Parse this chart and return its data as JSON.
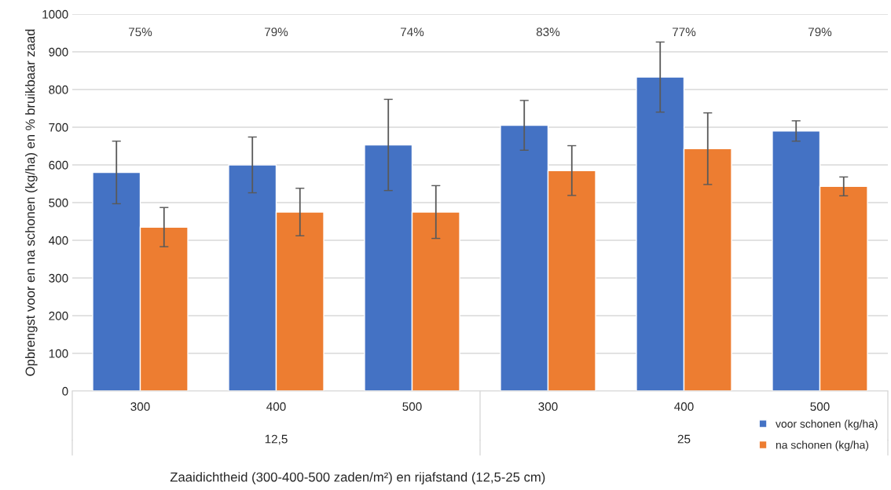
{
  "chart_data": {
    "type": "bar",
    "xlabel": "Zaaidichtheid (300-400-500 zaden/m²) en rijafstand (12,5-25 cm)",
    "ylabel": "Opbrengst voor en na schonen (kg/ha) en % bruikbaar zaad",
    "categories": [
      "300",
      "400",
      "500",
      "300",
      "400",
      "500"
    ],
    "series": [
      {
        "name": "voor schonen (kg/ha)",
        "color": "#4472c4",
        "values": [
          580,
          600,
          653,
          705,
          833,
          690
        ],
        "errors": [
          83,
          74,
          121,
          66,
          93,
          27
        ]
      },
      {
        "name": "na schonen (kg/ha)",
        "color": "#ed7d31",
        "values": [
          435,
          475,
          475,
          585,
          643,
          543
        ],
        "errors": [
          52,
          63,
          70,
          66,
          95,
          25
        ]
      }
    ],
    "annotations": [
      "75%",
      "79%",
      "74%",
      "83%",
      "77%",
      "79%",
      "12,5",
      "25"
    ],
    "ylim": [
      0,
      1000
    ],
    "yticks": [
      0,
      100,
      200,
      300,
      400,
      500,
      600,
      700,
      800,
      900,
      1000
    ],
    "grid": "y",
    "legend": "bottom right"
  }
}
